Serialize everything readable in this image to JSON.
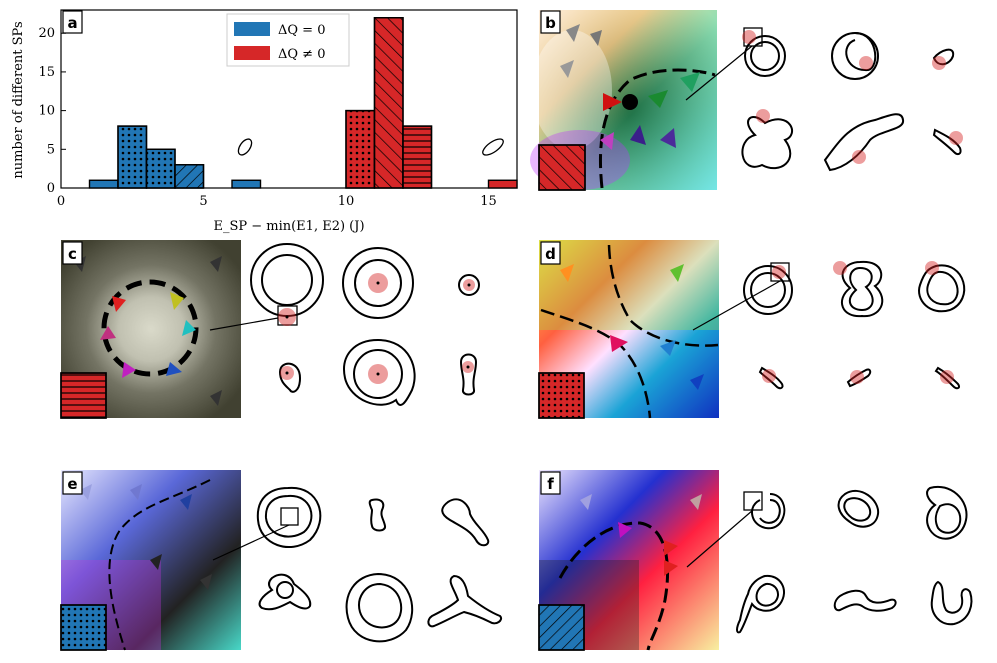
{
  "panels": {
    "a": "a",
    "b": "b",
    "c": "c",
    "d": "d",
    "e": "e",
    "f": "f"
  },
  "chart_data": {
    "type": "bar",
    "title": "",
    "xlabel": "E_SP − min(E1, E2) (J)",
    "ylabel": "number of different SPs",
    "xlim": [
      0,
      16
    ],
    "ylim": [
      0,
      23
    ],
    "xticks": [
      "0",
      "5",
      "10",
      "15"
    ],
    "yticks": [
      "0",
      "5",
      "10",
      "15",
      "20"
    ],
    "bin_width": 1,
    "legend_position": "top-center",
    "series": [
      {
        "name": "ΔQ = 0",
        "color": "#2176b5",
        "bins": [
          {
            "x": 1,
            "value": 1
          },
          {
            "x": 2,
            "value": 8
          },
          {
            "x": 3,
            "value": 5
          },
          {
            "x": 4,
            "value": 3
          },
          {
            "x": 6,
            "value": 1
          }
        ]
      },
      {
        "name": "ΔQ ≠ 0",
        "color": "#d62728",
        "bins": [
          {
            "x": 10,
            "value": 10
          },
          {
            "x": 11,
            "value": 22
          },
          {
            "x": 12,
            "value": 8
          },
          {
            "x": 15,
            "value": 1
          }
        ]
      }
    ]
  },
  "colors": {
    "blue": "#2176b5",
    "red": "#d62728",
    "marker": "#e08a8a"
  }
}
